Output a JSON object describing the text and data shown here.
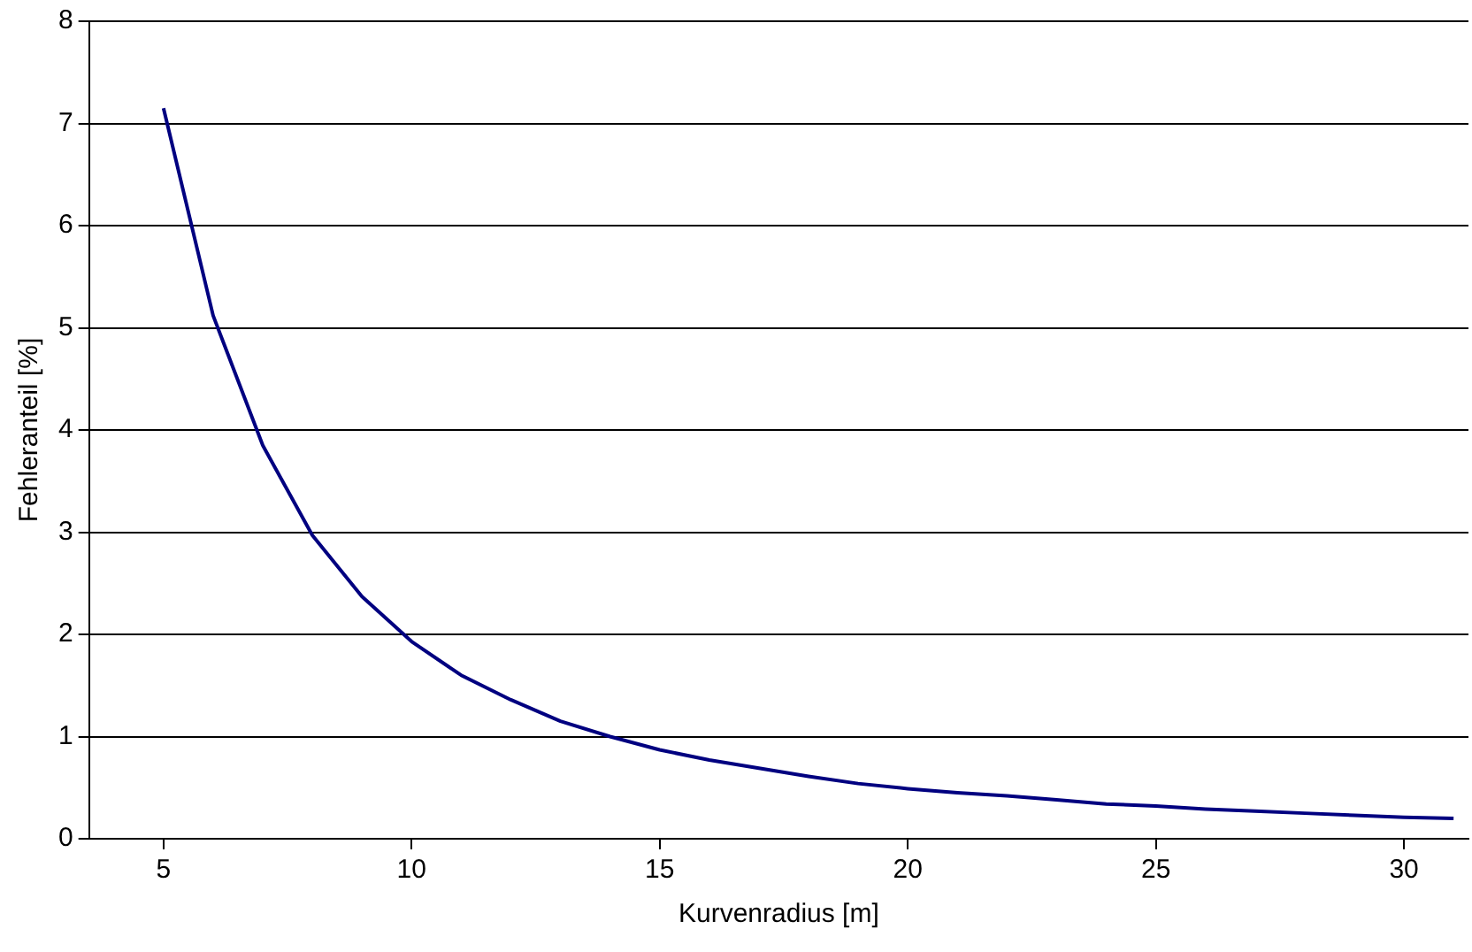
{
  "chart_data": {
    "type": "line",
    "xlabel": "Kurvenradius [m]",
    "ylabel": "Fehleranteil [%]",
    "x": [
      5,
      6,
      7,
      8,
      9,
      10,
      11,
      12,
      13,
      14,
      15,
      16,
      17,
      18,
      19,
      20,
      21,
      22,
      23,
      24,
      25,
      26,
      27,
      28,
      29,
      30,
      31
    ],
    "series": [
      {
        "color": "#000080",
        "values": [
          7.15,
          5.12,
          3.85,
          2.97,
          2.37,
          1.93,
          1.6,
          1.36,
          1.15,
          1.0,
          0.87,
          0.77,
          0.69,
          0.61,
          0.54,
          0.49,
          0.45,
          0.42,
          0.38,
          0.34,
          0.32,
          0.29,
          0.27,
          0.25,
          0.23,
          0.21,
          0.2
        ]
      }
    ],
    "xlim": [
      3.5,
      31.3
    ],
    "xticks": [
      5,
      10,
      15,
      20,
      25,
      30
    ],
    "ylim": [
      0,
      8
    ],
    "yticks": [
      0,
      1,
      2,
      3,
      4,
      5,
      6,
      7,
      8
    ],
    "grid": "y",
    "legend": false,
    "marker": "none",
    "line_style": "solid"
  }
}
